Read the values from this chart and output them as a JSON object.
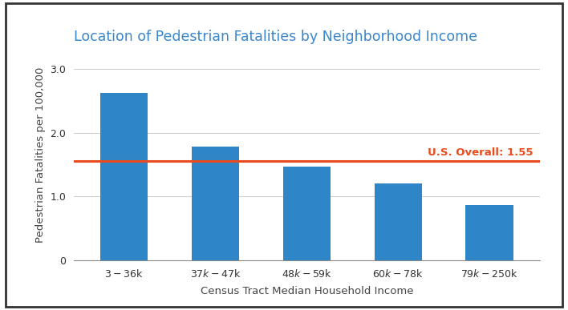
{
  "title": "Location of Pedestrian Fatalities by Neighborhood Income",
  "xlabel": "Census Tract Median Household Income",
  "ylabel": "Pedestrian Fatalities per 100,000",
  "categories": [
    "$3-$36k",
    "$37k-$47k",
    "$48k-$59k",
    "$60k-$78k",
    "$79k-$250k"
  ],
  "values": [
    2.62,
    1.78,
    1.47,
    1.21,
    0.87
  ],
  "bar_color": "#2e86c8",
  "reference_line_y": 1.55,
  "reference_line_color": "#e84c1e",
  "reference_line_label": "U.S. Overall: 1.55",
  "ylim": [
    0,
    3.3
  ],
  "yticks": [
    0,
    1.0,
    2.0,
    3.0
  ],
  "ytick_labels": [
    "0",
    "1.0",
    "2.0",
    "3.0"
  ],
  "title_color": "#3a86cc",
  "xlabel_color": "#444444",
  "ylabel_color": "#444444",
  "background_color": "#ffffff",
  "border_color": "#333333",
  "title_fontsize": 12.5,
  "label_fontsize": 9.5,
  "tick_fontsize": 9,
  "ref_label_fontsize": 9.5,
  "bar_width": 0.52,
  "grid_color": "#cccccc"
}
